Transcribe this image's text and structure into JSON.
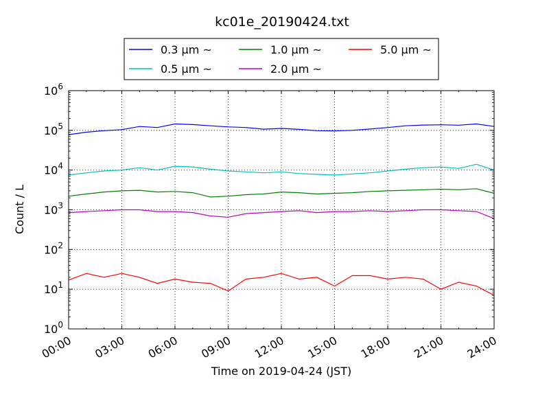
{
  "chart_data": {
    "type": "line",
    "title": "kc01e_20190424.txt",
    "xlabel": "Time on 2019-04-24 (JST)",
    "ylabel": "Count / L",
    "yscale": "log",
    "ylim": [
      1,
      1000000
    ],
    "xlim": [
      "00:00",
      "24:00"
    ],
    "x_ticks": [
      "00:00",
      "03:00",
      "06:00",
      "09:00",
      "12:00",
      "15:00",
      "18:00",
      "21:00",
      "24:00"
    ],
    "y_ticks": [
      {
        "base": "10",
        "exp": "0",
        "value": 1
      },
      {
        "base": "10",
        "exp": "1",
        "value": 10
      },
      {
        "base": "10",
        "exp": "2",
        "value": 100
      },
      {
        "base": "10",
        "exp": "3",
        "value": 1000
      },
      {
        "base": "10",
        "exp": "4",
        "value": 10000
      },
      {
        "base": "10",
        "exp": "5",
        "value": 100000
      },
      {
        "base": "10",
        "exp": "6",
        "value": 1000000
      }
    ],
    "grid": true,
    "legend_position": "top-center",
    "series": [
      {
        "name": "0.3 μm ~",
        "color": "#0000ff",
        "x": [
          "00:00",
          "01:00",
          "02:00",
          "03:00",
          "04:00",
          "05:00",
          "06:00",
          "07:00",
          "08:00",
          "09:00",
          "10:00",
          "11:00",
          "12:00",
          "13:00",
          "14:00",
          "15:00",
          "16:00",
          "17:00",
          "18:00",
          "19:00",
          "20:00",
          "21:00",
          "22:00",
          "23:00",
          "24:00"
        ],
        "values": [
          78000,
          90000,
          98000,
          104000,
          125000,
          118000,
          145000,
          140000,
          130000,
          122000,
          118000,
          107000,
          112000,
          106000,
          98000,
          97000,
          100000,
          108000,
          118000,
          130000,
          136000,
          138000,
          135000,
          145000,
          125000
        ]
      },
      {
        "name": "0.5 μm ~",
        "color": "#00bfbf",
        "x": [
          "00:00",
          "01:00",
          "02:00",
          "03:00",
          "04:00",
          "05:00",
          "06:00",
          "07:00",
          "08:00",
          "09:00",
          "10:00",
          "11:00",
          "12:00",
          "13:00",
          "14:00",
          "15:00",
          "16:00",
          "17:00",
          "18:00",
          "19:00",
          "20:00",
          "21:00",
          "22:00",
          "23:00",
          "24:00"
        ],
        "values": [
          7500,
          8500,
          9500,
          10000,
          11500,
          10000,
          12500,
          12000,
          10500,
          9500,
          9000,
          8500,
          9000,
          8200,
          7800,
          7500,
          8000,
          8500,
          9500,
          10500,
          11500,
          12000,
          11000,
          14000,
          10000
        ]
      },
      {
        "name": "1.0 μm ~",
        "color": "#008000",
        "x": [
          "00:00",
          "01:00",
          "02:00",
          "03:00",
          "04:00",
          "05:00",
          "06:00",
          "07:00",
          "08:00",
          "09:00",
          "10:00",
          "11:00",
          "12:00",
          "13:00",
          "14:00",
          "15:00",
          "16:00",
          "17:00",
          "18:00",
          "19:00",
          "20:00",
          "21:00",
          "22:00",
          "23:00",
          "24:00"
        ],
        "values": [
          2200,
          2500,
          2800,
          3000,
          3100,
          2800,
          2900,
          2700,
          2100,
          2200,
          2400,
          2500,
          2800,
          2700,
          2500,
          2600,
          2700,
          2900,
          3000,
          3100,
          3200,
          3300,
          3200,
          3400,
          2600
        ]
      },
      {
        "name": "2.0 μm ~",
        "color": "#bf00bf",
        "x": [
          "00:00",
          "01:00",
          "02:00",
          "03:00",
          "04:00",
          "05:00",
          "06:00",
          "07:00",
          "08:00",
          "09:00",
          "10:00",
          "11:00",
          "12:00",
          "13:00",
          "14:00",
          "15:00",
          "16:00",
          "17:00",
          "18:00",
          "19:00",
          "20:00",
          "21:00",
          "22:00",
          "23:00",
          "24:00"
        ],
        "values": [
          850,
          900,
          950,
          1000,
          1000,
          900,
          900,
          850,
          700,
          650,
          800,
          850,
          900,
          950,
          850,
          900,
          900,
          950,
          900,
          950,
          1000,
          1000,
          950,
          900,
          600
        ]
      },
      {
        "name": "5.0 μm ~",
        "color": "#ff0000",
        "x": [
          "00:00",
          "01:00",
          "02:00",
          "03:00",
          "04:00",
          "05:00",
          "06:00",
          "07:00",
          "08:00",
          "09:00",
          "10:00",
          "11:00",
          "12:00",
          "13:00",
          "14:00",
          "15:00",
          "16:00",
          "17:00",
          "18:00",
          "19:00",
          "20:00",
          "21:00",
          "22:00",
          "23:00",
          "24:00"
        ],
        "values": [
          17,
          25,
          20,
          25,
          20,
          14,
          18,
          15,
          14,
          9,
          18,
          20,
          25,
          18,
          20,
          12,
          22,
          22,
          18,
          20,
          18,
          10,
          15,
          12,
          7
        ]
      }
    ]
  }
}
